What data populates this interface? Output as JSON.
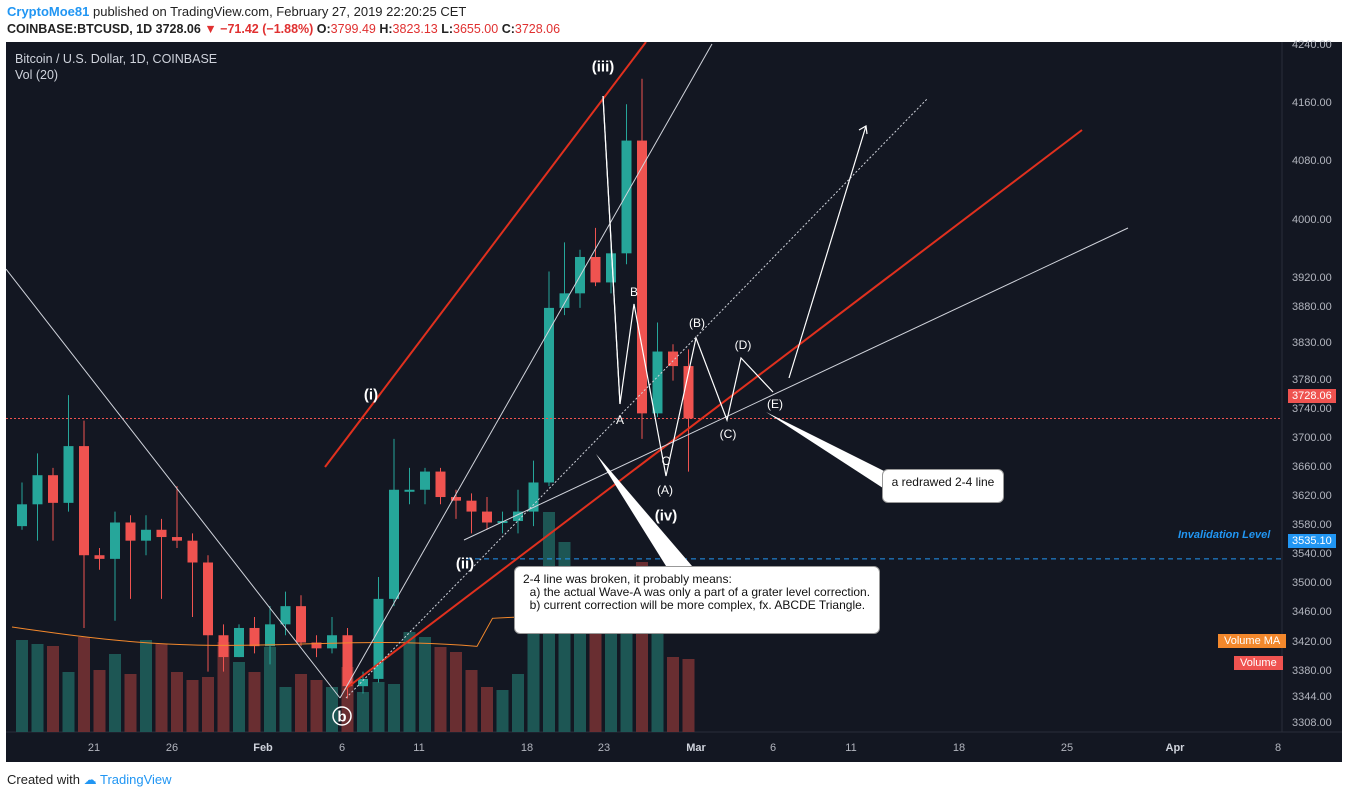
{
  "header": {
    "author": "CryptoMoe81",
    "published": "published on TradingView.com, February 27, 2019 22:20:25 CET",
    "symbol": "COINBASE:BTCUSD, 1D",
    "last": "3728.06",
    "change": "−71.42 (−1.88%)",
    "o_label": "O:",
    "o": "3799.49",
    "h_label": "H:",
    "h": "3823.13",
    "l_label": "L:",
    "l": "3655.00",
    "c_label": "C:",
    "c": "3728.06"
  },
  "legend": {
    "title": "Bitcoin / U.S. Dollar, 1D, COINBASE",
    "vol": "Vol (20)"
  },
  "footer": {
    "created_with": "Created with",
    "brand": "TradingView"
  },
  "colors": {
    "up": "#26a69a",
    "down": "#ef5350",
    "trend_red": "#e0301e",
    "background": "#131722"
  },
  "y_axis": [
    "4240.00",
    "4160.00",
    "4080.00",
    "4000.00",
    "3920.00",
    "3880.00",
    "3830.00",
    "3780.00",
    "3740.00",
    "3700.00",
    "3660.00",
    "3620.00",
    "3580.00",
    "3540.00",
    "3500.00",
    "3460.00",
    "3420.00",
    "3380.00",
    "3344.00",
    "3308.00"
  ],
  "x_axis": [
    {
      "t": "21",
      "bold": false
    },
    {
      "t": "26",
      "bold": false
    },
    {
      "t": "Feb",
      "bold": true
    },
    {
      "t": "6",
      "bold": false
    },
    {
      "t": "11",
      "bold": false
    },
    {
      "t": "18",
      "bold": false
    },
    {
      "t": "23",
      "bold": false
    },
    {
      "t": "Mar",
      "bold": true
    },
    {
      "t": "6",
      "bold": false
    },
    {
      "t": "11",
      "bold": false
    },
    {
      "t": "18",
      "bold": false
    },
    {
      "t": "25",
      "bold": false
    },
    {
      "t": "Apr",
      "bold": true
    },
    {
      "t": "8",
      "bold": false
    }
  ],
  "badges": {
    "price": "3728.06",
    "invalidation": "3535.10",
    "vol_ma": "Volume MA",
    "vol": "Volume",
    "invalidation_text": "Invalidation Level"
  },
  "waves": {
    "i": "(i)",
    "ii": "(ii)",
    "iii": "(iii)",
    "iv": "(iv)",
    "b": "b",
    "A": "A",
    "B": "B",
    "C": "C",
    "pA": "(A)",
    "pB": "(B)",
    "pC": "(C)",
    "pD": "(D)",
    "pE": "(E)"
  },
  "callouts": {
    "broken": "2-4 line was broken, it probably means:\n  a) the actual Wave-A was only a part of a grater level correction.\n  b) current correction will be more complex, fx. ABCDE Triangle.",
    "redraw": "a redrawed 2-4 line"
  },
  "chart_data": {
    "type": "candlestick",
    "symbol": "BTCUSD",
    "interval": "1D",
    "candles": [
      {
        "o": 3580,
        "c": 3610,
        "h": 3640,
        "l": 3575
      },
      {
        "o": 3610,
        "c": 3650,
        "h": 3680,
        "l": 3560
      },
      {
        "o": 3650,
        "c": 3612,
        "h": 3660,
        "l": 3560
      },
      {
        "o": 3612,
        "c": 3690,
        "h": 3760,
        "l": 3600
      },
      {
        "o": 3690,
        "c": 3540,
        "h": 3725,
        "l": 3440
      },
      {
        "o": 3540,
        "c": 3535,
        "h": 3550,
        "l": 3520
      },
      {
        "o": 3535,
        "c": 3585,
        "h": 3600,
        "l": 3450
      },
      {
        "o": 3585,
        "c": 3560,
        "h": 3595,
        "l": 3480
      },
      {
        "o": 3560,
        "c": 3575,
        "h": 3595,
        "l": 3540
      },
      {
        "o": 3575,
        "c": 3565,
        "h": 3590,
        "l": 3480
      },
      {
        "o": 3565,
        "c": 3560,
        "h": 3635,
        "l": 3550
      },
      {
        "o": 3560,
        "c": 3530,
        "h": 3570,
        "l": 3455
      },
      {
        "o": 3530,
        "c": 3430,
        "h": 3540,
        "l": 3380
      },
      {
        "o": 3430,
        "c": 3400,
        "h": 3445,
        "l": 3380
      },
      {
        "o": 3400,
        "c": 3440,
        "h": 3445,
        "l": 3400
      },
      {
        "o": 3440,
        "c": 3415,
        "h": 3455,
        "l": 3405
      },
      {
        "o": 3415,
        "c": 3445,
        "h": 3470,
        "l": 3390
      },
      {
        "o": 3445,
        "c": 3470,
        "h": 3490,
        "l": 3430
      },
      {
        "o": 3470,
        "c": 3420,
        "h": 3485,
        "l": 3415
      },
      {
        "o": 3420,
        "c": 3412,
        "h": 3430,
        "l": 3400
      },
      {
        "o": 3412,
        "c": 3430,
        "h": 3455,
        "l": 3405
      },
      {
        "o": 3430,
        "c": 3360,
        "h": 3440,
        "l": 3343
      },
      {
        "o": 3360,
        "c": 3370,
        "h": 3380,
        "l": 3350
      },
      {
        "o": 3370,
        "c": 3480,
        "h": 3510,
        "l": 3365
      },
      {
        "o": 3480,
        "c": 3630,
        "h": 3700,
        "l": 3470
      },
      {
        "o": 3630,
        "c": 3630,
        "h": 3660,
        "l": 3610
      },
      {
        "o": 3630,
        "c": 3655,
        "h": 3660,
        "l": 3610
      },
      {
        "o": 3655,
        "c": 3620,
        "h": 3660,
        "l": 3610
      },
      {
        "o": 3620,
        "c": 3615,
        "h": 3630,
        "l": 3590
      },
      {
        "o": 3615,
        "c": 3600,
        "h": 3625,
        "l": 3570
      },
      {
        "o": 3600,
        "c": 3585,
        "h": 3620,
        "l": 3575
      },
      {
        "o": 3585,
        "c": 3587,
        "h": 3600,
        "l": 3570
      },
      {
        "o": 3587,
        "c": 3600,
        "h": 3630,
        "l": 3570
      },
      {
        "o": 3600,
        "c": 3640,
        "h": 3670,
        "l": 3580
      },
      {
        "o": 3640,
        "c": 3880,
        "h": 3930,
        "l": 3635
      },
      {
        "o": 3880,
        "c": 3900,
        "h": 3970,
        "l": 3870
      },
      {
        "o": 3900,
        "c": 3950,
        "h": 3960,
        "l": 3880
      },
      {
        "o": 3950,
        "c": 3915,
        "h": 3990,
        "l": 3910
      },
      {
        "o": 3915,
        "c": 3955,
        "h": 3980,
        "l": 3900
      },
      {
        "o": 3955,
        "c": 4110,
        "h": 4160,
        "l": 3940
      },
      {
        "o": 4110,
        "c": 3735,
        "h": 4195,
        "l": 3700
      },
      {
        "o": 3735,
        "c": 3820,
        "h": 3860,
        "l": 3730
      },
      {
        "o": 3820,
        "c": 3800,
        "h": 3830,
        "l": 3780
      },
      {
        "o": 3800,
        "c": 3728,
        "h": 3823,
        "l": 3655
      }
    ],
    "volume_ma": "Volume MA",
    "invalidation_level": 3535.1,
    "last_price": 3728.06
  }
}
